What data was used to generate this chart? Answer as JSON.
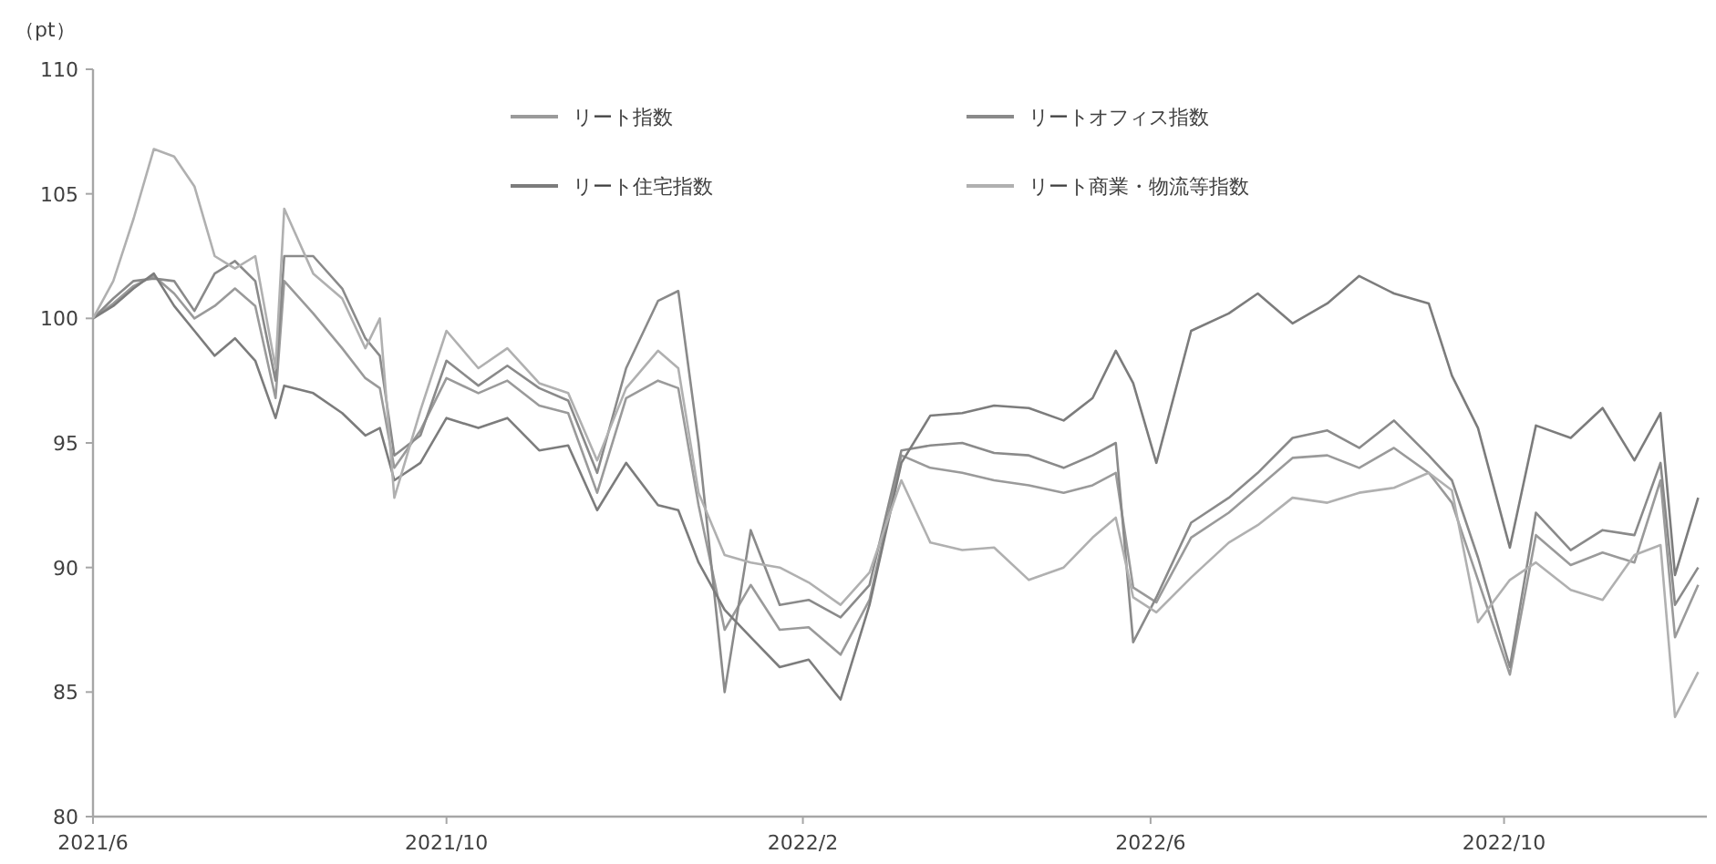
{
  "chart_data": {
    "type": "line",
    "ylabel": "（pt）",
    "x": [
      "2021-06-01",
      "2021-06-08",
      "2021-06-15",
      "2021-06-22",
      "2021-06-29",
      "2021-07-06",
      "2021-07-13",
      "2021-07-20",
      "2021-07-27",
      "2021-08-03",
      "2021-08-06",
      "2021-08-16",
      "2021-08-26",
      "2021-09-03",
      "2021-09-08",
      "2021-09-13",
      "2021-09-22",
      "2021-10-01",
      "2021-10-12",
      "2021-10-22",
      "2021-11-02",
      "2021-11-12",
      "2021-11-22",
      "2021-12-02",
      "2021-12-13",
      "2021-12-20",
      "2021-12-27",
      "2022-01-05",
      "2022-01-14",
      "2022-01-24",
      "2022-02-03",
      "2022-02-14",
      "2022-02-24",
      "2022-03-07",
      "2022-03-17",
      "2022-03-28",
      "2022-04-08",
      "2022-04-20",
      "2022-05-02",
      "2022-05-12",
      "2022-05-20",
      "2022-05-26",
      "2022-06-03",
      "2022-06-15",
      "2022-06-28",
      "2022-07-08",
      "2022-07-20",
      "2022-08-01",
      "2022-08-12",
      "2022-08-24",
      "2022-09-05",
      "2022-09-13",
      "2022-09-22",
      "2022-10-03",
      "2022-10-12",
      "2022-10-24",
      "2022-11-04",
      "2022-11-15",
      "2022-11-24",
      "2022-11-29",
      "2022-12-07"
    ],
    "series": [
      {
        "name": "リート指数",
        "color": "#9a9a9a",
        "values": [
          100,
          100.6,
          101.3,
          101.7,
          101,
          100,
          100.5,
          101.2,
          100.5,
          96.8,
          101.5,
          100.2,
          98.8,
          97.6,
          97.2,
          94,
          95.5,
          97.6,
          97,
          97.5,
          96.5,
          96.2,
          93,
          96.8,
          97.5,
          97.2,
          92.5,
          87.5,
          89.3,
          87.5,
          87.6,
          86.5,
          88.7,
          94.5,
          94,
          93.8,
          93.5,
          93.3,
          93,
          93.3,
          93.8,
          89.2,
          88.6,
          91.2,
          92.2,
          93.2,
          94.4,
          94.5,
          94,
          94.8,
          93.8,
          92.6,
          89.5,
          85.7,
          91.3,
          90.1,
          90.6,
          90.2,
          93.5,
          87.2,
          89.3
        ]
      },
      {
        "name": "リートオフィス指数",
        "color": "#8a8a8a",
        "values": [
          100,
          100.8,
          101.5,
          101.6,
          101.5,
          100.3,
          101.8,
          102.3,
          101.5,
          97.5,
          102.5,
          102.5,
          101.2,
          99.2,
          98.5,
          94.5,
          95.3,
          98.3,
          97.3,
          98.1,
          97.2,
          96.7,
          93.8,
          98,
          100.7,
          101.1,
          95,
          85,
          91.5,
          88.5,
          88.7,
          88,
          89.3,
          94.7,
          94.9,
          95,
          94.6,
          94.5,
          94,
          94.5,
          95,
          87,
          88.8,
          91.8,
          92.8,
          93.8,
          95.2,
          95.5,
          94.8,
          95.9,
          94.5,
          93.5,
          90.4,
          86,
          92.2,
          90.7,
          91.5,
          91.3,
          94.2,
          88.5,
          90
        ]
      },
      {
        "name": "リート住宅指数",
        "color": "#7c7c7c",
        "values": [
          100,
          100.5,
          101.2,
          101.8,
          100.5,
          99.5,
          98.5,
          99.2,
          98.3,
          96,
          97.3,
          97,
          96.2,
          95.3,
          95.6,
          93.5,
          94.2,
          96,
          95.6,
          96,
          94.7,
          94.9,
          92.3,
          94.2,
          92.5,
          92.3,
          90.2,
          88.3,
          87.2,
          86,
          86.3,
          84.7,
          88.5,
          94.2,
          96.1,
          96.2,
          96.5,
          96.4,
          95.9,
          96.8,
          98.7,
          97.4,
          94.2,
          99.5,
          100.2,
          101,
          99.8,
          100.6,
          101.7,
          101,
          100.6,
          97.7,
          95.6,
          90.8,
          95.7,
          95.2,
          96.4,
          94.3,
          96.2,
          89.7,
          92.8
        ]
      },
      {
        "name": "リート商業・物流等指数",
        "color": "#b0b0b0",
        "values": [
          100,
          101.5,
          104,
          106.8,
          106.5,
          105.3,
          102.5,
          102,
          102.5,
          98,
          104.4,
          101.8,
          100.8,
          98.8,
          100,
          92.8,
          96.3,
          99.5,
          98,
          98.8,
          97.4,
          97,
          94.3,
          97.2,
          98.7,
          98,
          93,
          90.5,
          90.2,
          90,
          89.4,
          88.5,
          89.8,
          93.5,
          91,
          90.7,
          90.8,
          89.5,
          90,
          91.2,
          92,
          88.8,
          88.2,
          89.6,
          91,
          91.7,
          92.8,
          92.6,
          93,
          93.2,
          93.8,
          93.1,
          87.8,
          89.5,
          90.2,
          89.1,
          88.7,
          90.5,
          90.9,
          84,
          85.8
        ]
      }
    ],
    "xlim": [
      "2021-06-01",
      "2022-12-10"
    ],
    "xticks": [
      {
        "value": "2021-06-01",
        "label": "2021/6"
      },
      {
        "value": "2021-10-01",
        "label": "2021/10"
      },
      {
        "value": "2022-02-01",
        "label": "2022/2"
      },
      {
        "value": "2022-06-01",
        "label": "2022/6"
      },
      {
        "value": "2022-10-01",
        "label": "2022/10"
      }
    ],
    "ylim": [
      80,
      110
    ],
    "yticks": [
      80,
      85,
      90,
      95,
      100,
      105,
      110
    ],
    "grid": false,
    "legend": "top",
    "marker": "none",
    "line_style": "solid"
  }
}
